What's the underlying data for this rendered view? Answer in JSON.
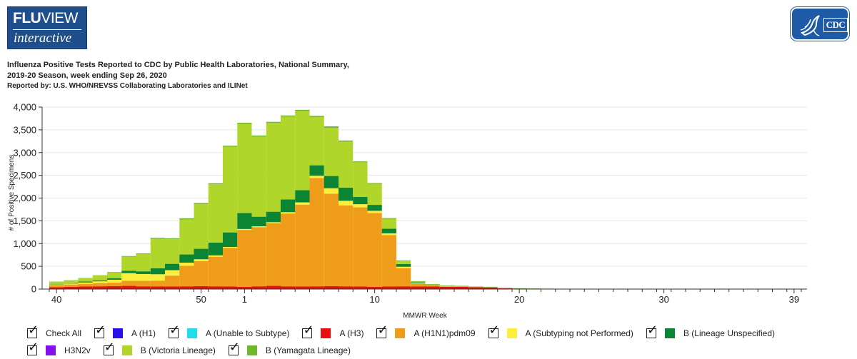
{
  "logo": {
    "top_bold": "FLU",
    "top_regular": "VIEW",
    "bottom": "interactive"
  },
  "cdc_logo": {
    "text": "CDC",
    "icon": "hhs-eagle-icon"
  },
  "header": {
    "title_line1": "Influenza Positive Tests Reported to CDC by Public Health Laboratories, National Summary,",
    "title_line2": "2019-20 Season, week ending Sep 26, 2020",
    "subtitle": "Reported by: U.S. WHO/NREVSS Collaborating Laboratories and ILINet"
  },
  "chart_data": {
    "type": "bar",
    "stacked": true,
    "xlabel": "MMWR Week",
    "ylabel": "# of Positive Specimens",
    "ylim": [
      0,
      4000
    ],
    "yticks": [
      0,
      500,
      1000,
      1500,
      2000,
      2500,
      3000,
      3500,
      4000
    ],
    "ytick_labels": [
      "0",
      "500",
      "1,000",
      "1,500",
      "2,000",
      "2,500",
      "3,000",
      "3,500",
      "4,000"
    ],
    "grid": true,
    "categories": [
      40,
      41,
      42,
      43,
      44,
      45,
      46,
      47,
      48,
      49,
      50,
      51,
      52,
      1,
      2,
      3,
      4,
      5,
      6,
      7,
      8,
      9,
      10,
      11,
      12,
      13,
      14,
      15,
      16,
      17,
      18,
      19,
      20,
      21,
      22,
      23,
      24,
      25,
      26,
      27,
      28,
      29,
      30,
      31,
      32,
      33,
      34,
      35,
      36,
      37,
      38,
      39
    ],
    "xtick_labels": [
      {
        "week": 40,
        "label": "40"
      },
      {
        "week": 50,
        "label": "50"
      },
      {
        "week": 1,
        "label": "1"
      },
      {
        "week": 10,
        "label": "10"
      },
      {
        "week": 20,
        "label": "20"
      },
      {
        "week": 30,
        "label": "30"
      },
      {
        "week": 39,
        "label": "39"
      }
    ],
    "series": [
      {
        "name": "A (H3)",
        "color": "#e8110f",
        "values": [
          40,
          50,
          55,
          60,
          65,
          70,
          60,
          55,
          55,
          60,
          65,
          60,
          55,
          50,
          60,
          70,
          60,
          55,
          60,
          65,
          60,
          55,
          50,
          55,
          60,
          55,
          55,
          50,
          50,
          40,
          35,
          15,
          5,
          2,
          1,
          1,
          0,
          0,
          0,
          0,
          0,
          0,
          0,
          0,
          0,
          0,
          0,
          0,
          0,
          0,
          0,
          0
        ]
      },
      {
        "name": "A (H1N1)pdm09",
        "color": "#ef9c1a",
        "values": [
          40,
          50,
          60,
          70,
          80,
          110,
          120,
          130,
          240,
          450,
          550,
          650,
          850,
          1250,
          1300,
          1380,
          1600,
          1800,
          2380,
          2030,
          1780,
          1740,
          1620,
          1130,
          400,
          60,
          20,
          10,
          5,
          3,
          2,
          1,
          1,
          0,
          0,
          0,
          0,
          0,
          0,
          0,
          0,
          0,
          0,
          0,
          0,
          0,
          0,
          0,
          0,
          0,
          0,
          0
        ]
      },
      {
        "name": "A (Subtyping not Performed)",
        "color": "#fcee3c",
        "values": [
          10,
          20,
          30,
          40,
          60,
          170,
          150,
          140,
          120,
          70,
          40,
          30,
          20,
          20,
          20,
          20,
          30,
          50,
          50,
          120,
          100,
          70,
          50,
          40,
          30,
          10,
          5,
          2,
          1,
          1,
          0,
          0,
          0,
          0,
          0,
          0,
          0,
          0,
          0,
          0,
          0,
          0,
          0,
          0,
          0,
          0,
          0,
          0,
          0,
          0,
          0,
          0
        ]
      },
      {
        "name": "B (Lineage Unspecified)",
        "color": "#0b8534",
        "values": [
          10,
          10,
          20,
          20,
          30,
          50,
          60,
          130,
          140,
          180,
          230,
          280,
          320,
          350,
          210,
          230,
          280,
          270,
          230,
          270,
          290,
          160,
          130,
          100,
          60,
          20,
          10,
          5,
          3,
          2,
          2,
          1,
          1,
          1,
          0,
          0,
          0,
          0,
          0,
          0,
          0,
          0,
          0,
          0,
          0,
          0,
          0,
          0,
          0,
          0,
          0,
          0
        ]
      },
      {
        "name": "B (Victoria Lineage)",
        "color": "#b1d62b",
        "values": [
          60,
          60,
          75,
          110,
          130,
          310,
          380,
          650,
          540,
          770,
          980,
          1280,
          1880,
          1960,
          1760,
          1950,
          1820,
          1740,
          1060,
          1060,
          1010,
          760,
          460,
          220,
          70,
          20,
          10,
          5,
          5,
          2,
          2,
          1,
          1,
          0,
          0,
          0,
          0,
          0,
          0,
          0,
          0,
          0,
          0,
          0,
          0,
          0,
          0,
          0,
          0,
          0,
          0,
          0
        ]
      },
      {
        "name": "B (Yamagata Lineage)",
        "color": "#6fb82d",
        "values": [
          5,
          5,
          5,
          5,
          10,
          15,
          15,
          20,
          20,
          25,
          25,
          25,
          25,
          25,
          25,
          25,
          25,
          25,
          25,
          30,
          25,
          20,
          20,
          15,
          10,
          10,
          10,
          8,
          8,
          8,
          8,
          10,
          10,
          10,
          8,
          6,
          6,
          6,
          5,
          5,
          5,
          5,
          5,
          5,
          4,
          4,
          4,
          4,
          4,
          4,
          3,
          3
        ]
      }
    ]
  },
  "legend": {
    "items": [
      {
        "label": "Check All",
        "color": "",
        "check": "☑"
      },
      {
        "label": "A (H1)",
        "color": "#2a10e8",
        "check": "☑"
      },
      {
        "label": "A (Unable to Subtype)",
        "color": "#22dced",
        "check": "☑"
      },
      {
        "label": "A (H3)",
        "color": "#e8110f",
        "check": "☑"
      },
      {
        "label": "A (H1N1)pdm09",
        "color": "#ef9c1a",
        "check": "☑"
      },
      {
        "label": "A (Subtyping not Performed)",
        "color": "#fcee3c",
        "check": "☑"
      },
      {
        "label": "B (Lineage Unspecified)",
        "color": "#0b8534",
        "check": "☑"
      },
      {
        "label": "H3N2v",
        "color": "#8410ee",
        "check": "☑"
      },
      {
        "label": "B (Victoria Lineage)",
        "color": "#b1d62b",
        "check": "☑"
      },
      {
        "label": "B (Yamagata Lineage)",
        "color": "#6fb82d",
        "check": "☑"
      }
    ]
  }
}
